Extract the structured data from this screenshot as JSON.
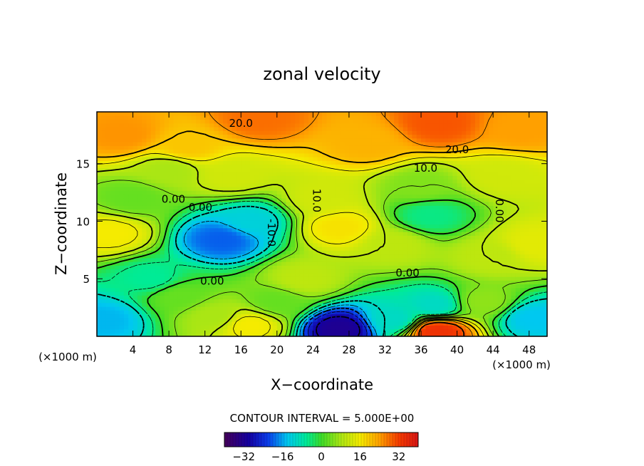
{
  "chart_data": {
    "type": "heatmap",
    "title": "zonal velocity",
    "xlabel": "X−coordinate",
    "ylabel": "Z−coordinate",
    "x_unit_left": "(×1000 m)",
    "x_unit_right": "(×1000 m)",
    "xlim": [
      0,
      50
    ],
    "ylim": [
      0,
      19.5
    ],
    "x_ticks": [
      4,
      8,
      12,
      16,
      20,
      24,
      28,
      32,
      36,
      40,
      44,
      48
    ],
    "y_ticks": [
      5,
      10,
      15
    ],
    "contour_interval_text": "CONTOUR INTERVAL = 5.000E+00",
    "colorbar": {
      "range": [
        -40,
        40
      ],
      "ticks": [
        -32,
        -16,
        0,
        16,
        32
      ],
      "tick_labels": [
        "−32",
        "−16",
        "0",
        "16",
        "32"
      ]
    },
    "contour_labels": [
      {
        "text": "20.0",
        "x": 16.0,
        "z": 18.2
      },
      {
        "text": "20.0",
        "x": 40.0,
        "z": 15.9
      },
      {
        "text": "10.0",
        "x": 36.5,
        "z": 14.3
      },
      {
        "text": "0.00",
        "x": 8.5,
        "z": 11.6
      },
      {
        "text": "0.00",
        "x": 11.5,
        "z": 10.9
      },
      {
        "text": "10.0",
        "x": 24.0,
        "z": 11.8
      },
      {
        "text": "-10.0",
        "x": 19.0,
        "z": 9.0
      },
      {
        "text": "0.00",
        "x": 44.3,
        "z": 10.9
      },
      {
        "text": "0.00",
        "x": 12.8,
        "z": 4.5
      },
      {
        "text": "0.00",
        "x": 34.5,
        "z": 5.2
      }
    ],
    "features": [
      {
        "x": 3,
        "z": 17.5,
        "value": 25
      },
      {
        "x": 18,
        "z": 19,
        "value": 28
      },
      {
        "x": 38,
        "z": 18.5,
        "value": 30
      },
      {
        "x": 47,
        "z": 18,
        "value": 24
      },
      {
        "x": 10,
        "z": 16.5,
        "value": 20
      },
      {
        "x": 30,
        "z": 16.8,
        "value": 22
      },
      {
        "x": 25,
        "z": 12,
        "value": 12
      },
      {
        "x": 36,
        "z": 13,
        "value": 5
      },
      {
        "x": 8,
        "z": 14.5,
        "value": 8
      },
      {
        "x": 15,
        "z": 14,
        "value": 12
      },
      {
        "x": 45,
        "z": 14,
        "value": 12
      },
      {
        "x": 27,
        "z": 9.5,
        "value": 17
      },
      {
        "x": 1.5,
        "z": 9,
        "value": 16
      },
      {
        "x": 48.5,
        "z": 8,
        "value": 14
      },
      {
        "x": 44,
        "z": 7,
        "value": 10
      },
      {
        "x": 33,
        "z": 8,
        "value": 10
      },
      {
        "x": 14,
        "z": 8.5,
        "value": -20
      },
      {
        "x": 17,
        "z": 10,
        "value": -12
      },
      {
        "x": 37,
        "z": 10.5,
        "value": -5
      },
      {
        "x": 6,
        "z": 5,
        "value": -6
      },
      {
        "x": 9,
        "z": 3.5,
        "value": 3
      },
      {
        "x": 27,
        "z": 0.7,
        "value": -32
      },
      {
        "x": 33,
        "z": 1.5,
        "value": -10
      },
      {
        "x": 37.8,
        "z": 0.5,
        "value": 34
      },
      {
        "x": 37.5,
        "z": 2.7,
        "value": -10
      },
      {
        "x": 17,
        "z": 1.0,
        "value": 16
      },
      {
        "x": 13,
        "z": 1.8,
        "value": 8
      },
      {
        "x": 0.8,
        "z": 1.5,
        "value": -15
      },
      {
        "x": 48.5,
        "z": 1.6,
        "value": -14
      },
      {
        "x": 43,
        "z": 3,
        "value": 6
      },
      {
        "x": 23,
        "z": 5,
        "value": 10
      },
      {
        "x": 4,
        "z": 12,
        "value": 3
      },
      {
        "x": 20,
        "z": 3,
        "value": 3
      }
    ],
    "grid": false
  }
}
